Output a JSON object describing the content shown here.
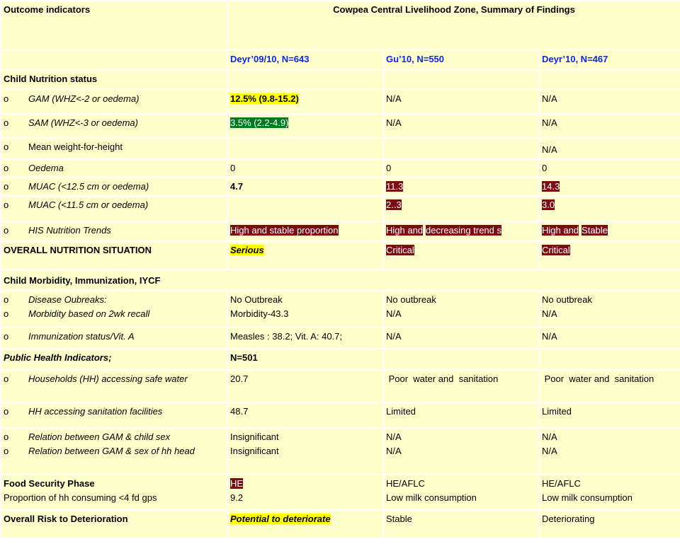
{
  "header": {
    "outcome_label": "Outcome indicators",
    "zone_title": "Cowpea Central Livelihood Zone, Summary of Findings",
    "col1": "Deyr’09/10, N=643",
    "col2": "Gu’10, N=550",
    "col3": "Deyr’10, N=467"
  },
  "bullet_glyph": "o",
  "sections": {
    "child_nutrition": "Child Nutrition status",
    "morbidity": "Child Morbidity,  Immunization, IYCF",
    "public_health": "Public Health Indicators;",
    "public_health_n": "N=501",
    "food_security": "Food Security Phase",
    "proportion_fd": "Proportion of hh consuming <4 fd gps",
    "overall_risk": "Overall Risk to Deterioration",
    "overall_nutrition": "OVERALL NUTRITION SITUATION"
  },
  "rows": {
    "gam": {
      "label": "GAM (WHZ<-2 or oedema)",
      "c1": "12.5% (9.8-15.2)",
      "c2": "N/A",
      "c3": "N/A"
    },
    "sam": {
      "label": "SAM (WHZ<-3 or oedema)",
      "c1": "3.5% (2.2-4.9)",
      "c2": "N/A",
      "c3": "N/A"
    },
    "mean_wfh": {
      "label": "Mean weight-for-height",
      "c1": "",
      "c2": "",
      "c3": "N/A"
    },
    "oedema": {
      "label": "Oedema",
      "c1": "0",
      "c2": "0",
      "c3": "0"
    },
    "muac125": {
      "label": "MUAC (<12.5 cm or oedema)",
      "c1": "4.7",
      "c2": "11.3",
      "c3": "14.3"
    },
    "muac115": {
      "label": "MUAC (<11.5 cm or oedema)",
      "c1": "",
      "c2": "2..3",
      "c3": "3.0"
    },
    "his": {
      "label": "HIS Nutrition Trends",
      "c1": "High and stable proportion",
      "c2a": "High and",
      "c2b": "decreasing trend s",
      "c3a": "High and",
      "c3b": "Stable"
    },
    "overall": {
      "c1": "Serious",
      "c2": "Critical",
      "c3": "Critical"
    },
    "disease": {
      "label1": "Disease Oubreaks:",
      "label2": "Morbidity based on 2wk recall",
      "c1a": "No Outbreak",
      "c1b": "Morbidity-43.3",
      "c2a": "No outbreak",
      "c2b": "N/A",
      "c3a": "No outbreak",
      "c3b": "N/A"
    },
    "immunization": {
      "label": "Immunization status/Vit. A",
      "c1": "Measles : 38.2; Vit. A: 40.7;",
      "c2": "N/A",
      "c3": "N/A"
    },
    "safe_water": {
      "label": "Households (HH) accessing safe water",
      "c1": "20.7",
      "c2": " Poor  water and  sanitation",
      "c3": " Poor  water and  sanitation"
    },
    "sanitation": {
      "label": "HH accessing sanitation facilities",
      "c1": "48.7",
      "c2": "Limited",
      "c3": "Limited"
    },
    "gam_sex": {
      "label1": "Relation between GAM & child sex",
      "label2": "Relation between GAM & sex of hh head",
      "c1a": "Insignificant",
      "c1b": "Insignificant",
      "c2a": "N/A",
      "c2b": "N/A",
      "c3a": "N/A",
      "c3b": "N/A"
    },
    "food": {
      "c1a": "HE",
      "c1b": "9.2",
      "c2a": "HE/AFLC",
      "c2b": "Low  milk consumption",
      "c3a": "HE/AFLC",
      "c3b": "Low  milk consumption"
    },
    "risk": {
      "c1": "Potential to deteriorate",
      "c2": "Stable",
      "c3": "Deteriorating"
    }
  },
  "colors": {
    "background": "#ffffcc",
    "header_blue": "#0b24f5",
    "highlight_yellow": "#ffff00",
    "highlight_green": "#007a1e",
    "highlight_maroon": "#7a0c14"
  }
}
